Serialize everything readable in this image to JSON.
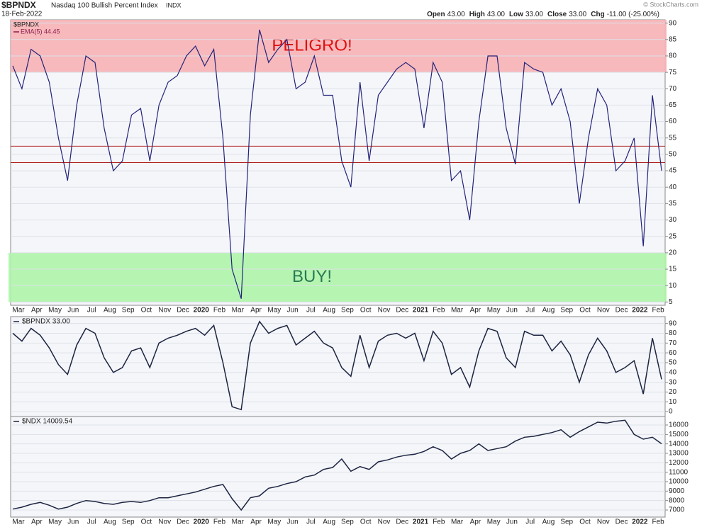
{
  "header": {
    "symbol": "$BPNDX",
    "name": "Nasdaq 100 Bullish Percent Index",
    "exchange": "INDX",
    "date": "18-Feb-2022",
    "quote": [
      {
        "label": "Open",
        "value": "43.00"
      },
      {
        "label": "High",
        "value": "43.00"
      },
      {
        "label": "Low",
        "value": "33.00"
      },
      {
        "label": "Close",
        "value": "33.00"
      },
      {
        "label": "Chg",
        "value": "-11.00 (-25.00%)"
      }
    ],
    "credit": "© StockCharts.com"
  },
  "chart_data": [
    {
      "type": "line",
      "legend_label": "$BPNDX",
      "categories": [
        "Mar",
        null,
        "Apr",
        null,
        "May",
        null,
        "Jun",
        null,
        "Jul",
        null,
        "Aug",
        null,
        "Sep",
        null,
        "Oct",
        null,
        "Nov",
        null,
        "Dec",
        null,
        "2020",
        null,
        "Feb",
        null,
        "Mar",
        null,
        "Apr",
        null,
        "May",
        null,
        "Jun",
        null,
        "Jul",
        null,
        "Aug",
        null,
        "Sep",
        null,
        "Oct",
        null,
        "Nov",
        null,
        "Dec",
        null,
        "2021",
        null,
        "Feb",
        null,
        "Mar",
        null,
        "Apr",
        null,
        "May",
        null,
        "Jun",
        null,
        "Jul",
        null,
        "Aug",
        null,
        "Sep",
        null,
        "Oct",
        null,
        "Nov",
        null,
        "Dec",
        null,
        "2022",
        null,
        "Feb",
        null
      ],
      "series": [
        {
          "name": "EMA(5) 44.45",
          "color": "#23237a",
          "legend_color": "#8b1a4a",
          "values": [
            77,
            70,
            82,
            80,
            72,
            55,
            42,
            65,
            80,
            78,
            58,
            45,
            48,
            62,
            64,
            48,
            65,
            72,
            74,
            80,
            83,
            77,
            82,
            55,
            15,
            6,
            62,
            88,
            78,
            82,
            85,
            70,
            72,
            80,
            68,
            68,
            48,
            40,
            72,
            48,
            68,
            72,
            76,
            78,
            76,
            58,
            78,
            72,
            42,
            45,
            30,
            60,
            80,
            80,
            58,
            47,
            78,
            76,
            75,
            65,
            70,
            60,
            35,
            55,
            70,
            65,
            45,
            48,
            55,
            22,
            68,
            45
          ]
        }
      ],
      "bands": [
        {
          "from": 75,
          "to": 91,
          "label": "PELIGRO!",
          "color": "#f7b3b5",
          "text_color": "#e01010"
        },
        {
          "from": 5,
          "to": 20,
          "label": "BUY!",
          "color": "#aef5a8",
          "text_color": "#2a7a55"
        }
      ],
      "hlines": [
        47.5,
        52.5
      ],
      "hline_color": "#b02020",
      "ylim": [
        4,
        91
      ],
      "yticks": [
        5,
        10,
        15,
        20,
        25,
        30,
        35,
        40,
        45,
        50,
        55,
        60,
        65,
        70,
        75,
        80,
        85,
        90
      ],
      "grid": true
    },
    {
      "type": "line",
      "series": [
        {
          "name": "$BPNDX 33.00",
          "color": "#1c2440",
          "values": [
            80,
            72,
            85,
            78,
            65,
            48,
            38,
            68,
            85,
            80,
            55,
            40,
            45,
            62,
            65,
            45,
            70,
            75,
            78,
            82,
            85,
            78,
            88,
            50,
            5,
            2,
            70,
            92,
            80,
            85,
            88,
            68,
            75,
            82,
            70,
            65,
            45,
            36,
            78,
            45,
            72,
            78,
            80,
            75,
            80,
            52,
            82,
            70,
            38,
            45,
            25,
            62,
            85,
            82,
            55,
            45,
            82,
            78,
            78,
            62,
            72,
            58,
            30,
            58,
            75,
            62,
            40,
            45,
            52,
            18,
            75,
            33
          ]
        }
      ],
      "ylim": [
        -5,
        97
      ],
      "yticks": [
        0,
        10,
        20,
        30,
        40,
        50,
        60,
        70,
        80,
        90
      ],
      "grid": true
    },
    {
      "type": "line",
      "categories": [
        "Mar",
        null,
        "Apr",
        null,
        "May",
        null,
        "Jun",
        null,
        "Jul",
        null,
        "Aug",
        null,
        "Sep",
        null,
        "Oct",
        null,
        "Nov",
        null,
        "Dec",
        null,
        "2020",
        null,
        "Feb",
        null,
        "Mar",
        null,
        "Apr",
        null,
        "May",
        null,
        "Jun",
        null,
        "Jul",
        null,
        "Aug",
        null,
        "Sep",
        null,
        "Oct",
        null,
        "Nov",
        null,
        "Dec",
        null,
        "2021",
        null,
        "Feb",
        null,
        "Mar",
        null,
        "Apr",
        null,
        "May",
        null,
        "Jun",
        null,
        "Jul",
        null,
        "Aug",
        null,
        "Sep",
        null,
        "Oct",
        null,
        "Nov",
        null,
        "Dec",
        null,
        "2022",
        null,
        "Feb",
        null
      ],
      "series": [
        {
          "name": "$NDX 14009.54",
          "color": "#1c2440",
          "values": [
            7100,
            7300,
            7600,
            7800,
            7500,
            7100,
            7300,
            7700,
            8000,
            7900,
            7700,
            7600,
            7800,
            7900,
            7800,
            8000,
            8300,
            8300,
            8500,
            8700,
            8900,
            9200,
            9500,
            9700,
            8200,
            7000,
            8300,
            8500,
            9300,
            9500,
            9800,
            10000,
            10500,
            10700,
            11300,
            11500,
            12400,
            11100,
            11600,
            11300,
            12100,
            12300,
            12600,
            12800,
            12900,
            13200,
            13700,
            13300,
            12400,
            13000,
            13300,
            14000,
            13300,
            13500,
            13700,
            14300,
            14700,
            14800,
            15000,
            15200,
            15500,
            14700,
            15300,
            15800,
            16300,
            16200,
            16400,
            16500,
            15000,
            14500,
            14700,
            14009.54
          ]
        }
      ],
      "ylim": [
        6250,
        16900
      ],
      "yticks": [
        7000,
        8000,
        9000,
        10000,
        11000,
        12000,
        13000,
        14000,
        15000,
        16000
      ],
      "grid": true
    }
  ]
}
